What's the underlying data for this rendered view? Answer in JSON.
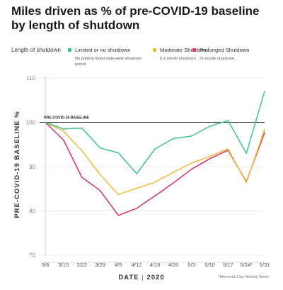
{
  "title": "Miles driven as % of pre-COVID-19 baseline by length of shutdown",
  "legend": {
    "heading": "Length of shutdown",
    "items": [
      {
        "label": "Limited or no shutdown",
        "sub": "No publicly listed state-wide shutdown period",
        "color": "#3fc48c"
      },
      {
        "label": "Moderate Shutdown",
        "sub": "0-2 month shutdown",
        "color": "#f2b83b"
      },
      {
        "label": "Prolonged Shutdown",
        "sub": "2+ month shutdown",
        "color": "#d8325e"
      }
    ]
  },
  "xlabel_left": "DATE",
  "xlabel_right": "2020",
  "note": "*Memorial Day Holiday Week",
  "baseline_label": "PRE-COVID-19 BASELINE",
  "chart_data": {
    "type": "line",
    "title": "Miles driven as % of pre-COVID-19 baseline by length of shutdown",
    "xlabel": "DATE | 2020",
    "ylabel": "PRE-COVID-19 BASELINE %",
    "ylim": [
      70,
      110
    ],
    "yticks": [
      70,
      80,
      90,
      100,
      110
    ],
    "categories": [
      "3/8",
      "3/15",
      "3/22",
      "3/29",
      "4/5",
      "4/12",
      "4/19",
      "4/26",
      "5/3",
      "5/10",
      "5/17",
      "5/24*",
      "5/31"
    ],
    "baseline": 100,
    "grid": true,
    "legend_position": "top",
    "series": [
      {
        "name": "Limited or no shutdown",
        "color": "#3fc48c",
        "values": [
          100,
          98.5,
          98.7,
          94.2,
          93.1,
          88.4,
          94.0,
          96.3,
          96.9,
          99.1,
          100.4,
          93.0,
          107.0
        ]
      },
      {
        "name": "Moderate Shutdown",
        "color": "#f2b83b",
        "values": [
          100,
          98.0,
          93.6,
          88.2,
          83.7,
          85.1,
          86.5,
          88.7,
          90.8,
          92.3,
          94.0,
          86.4,
          98.4
        ]
      },
      {
        "name": "Prolonged Shutdown",
        "color": "#d8325e",
        "values": [
          100,
          96.0,
          87.6,
          84.6,
          79.0,
          80.6,
          83.4,
          86.3,
          89.4,
          91.8,
          93.7,
          86.6,
          97.7
        ]
      }
    ]
  }
}
